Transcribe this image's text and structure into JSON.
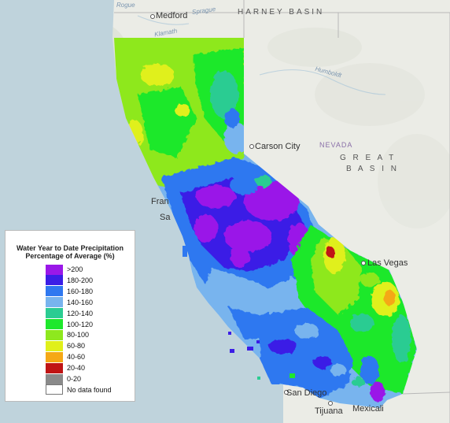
{
  "places": {
    "medford": "Medford",
    "harney_basin": "HARNEY BASIN",
    "carson_city": "Carson City",
    "nevada": "NEVADA",
    "great": "G R E A T",
    "basin": "B A S I N",
    "las_vegas": "Las Vegas",
    "san_diego": "San Diego",
    "tijuana": "Tijuana",
    "mexicali": "Mexicali",
    "san_fran_partial": "Fran",
    "sa_partial": "Sa",
    "klamath": "Klamath",
    "sprague": "Sprague",
    "humboldt": "Humboldt",
    "rogue": "Rogue"
  },
  "legend": {
    "title": "Water Year to Date Precipitation Percentage of Average (%)",
    "items": [
      {
        "label": ">200",
        "color": "#9a18e8"
      },
      {
        "label": "180-200",
        "color": "#3b1ee6"
      },
      {
        "label": "160-180",
        "color": "#2f78f0"
      },
      {
        "label": "140-160",
        "color": "#78b4ee"
      },
      {
        "label": "120-140",
        "color": "#2bcc92"
      },
      {
        "label": "100-120",
        "color": "#1ee82c"
      },
      {
        "label": "80-100",
        "color": "#8ee81e"
      },
      {
        "label": "60-80",
        "color": "#e0f01a"
      },
      {
        "label": "40-60",
        "color": "#f5a815"
      },
      {
        "label": "20-40",
        "color": "#c01414"
      },
      {
        "label": "0-20",
        "color": "#8a8a8a"
      },
      {
        "label": "No data found",
        "color": "#ffffff"
      }
    ]
  }
}
